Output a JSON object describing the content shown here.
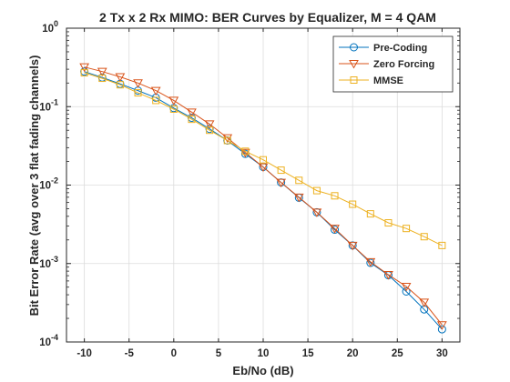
{
  "chart_data": {
    "type": "line",
    "title": "2 Tx x 2 Rx MIMO: BER Curves by Equalizer, M = 4 QAM",
    "xlabel": "Eb/No (dB)",
    "ylabel": "Bit Error Rate (avg over 3 flat fading channels)",
    "xlim": [
      -12,
      32
    ],
    "ylim": [
      0.0001,
      1
    ],
    "yscale": "log",
    "grid": true,
    "legend_position": "top-right",
    "x_ticks": [
      -10,
      -5,
      0,
      5,
      10,
      15,
      20,
      25,
      30
    ],
    "x_tick_labels": [
      "-10",
      "-5",
      "0",
      "5",
      "10",
      "15",
      "20",
      "25",
      "30"
    ],
    "y_ticks": [
      0.0001,
      0.001,
      0.01,
      0.1,
      1
    ],
    "y_tick_labels": [
      {
        "base": "10",
        "exp": "-4"
      },
      {
        "base": "10",
        "exp": "-3"
      },
      {
        "base": "10",
        "exp": "-2"
      },
      {
        "base": "10",
        "exp": "-1"
      },
      {
        "base": "10",
        "exp": "0"
      }
    ],
    "x": [
      -10,
      -8,
      -6,
      -4,
      -2,
      0,
      2,
      4,
      6,
      8,
      10,
      12,
      14,
      16,
      18,
      20,
      22,
      24,
      26,
      28,
      30
    ],
    "series": [
      {
        "name": "Pre-Coding",
        "color": "#0072BD",
        "marker": "circle",
        "values": [
          0.28,
          0.235,
          0.195,
          0.16,
          0.13,
          0.096,
          0.072,
          0.052,
          0.037,
          0.025,
          0.017,
          0.0108,
          0.0069,
          0.0045,
          0.0027,
          0.0017,
          0.00102,
          0.00071,
          0.00044,
          0.00026,
          0.000145
        ]
      },
      {
        "name": "Zero Forcing",
        "color": "#D95319",
        "marker": "triangle-down",
        "values": [
          0.32,
          0.28,
          0.24,
          0.2,
          0.16,
          0.12,
          0.085,
          0.06,
          0.04,
          0.026,
          0.017,
          0.0108,
          0.007,
          0.0045,
          0.0028,
          0.0017,
          0.00105,
          0.00072,
          0.00051,
          0.00032,
          0.000165
        ]
      },
      {
        "name": "MMSE",
        "color": "#EDB120",
        "marker": "square",
        "values": [
          0.27,
          0.23,
          0.19,
          0.15,
          0.12,
          0.093,
          0.069,
          0.05,
          0.037,
          0.027,
          0.021,
          0.0155,
          0.0115,
          0.0085,
          0.0073,
          0.0057,
          0.0043,
          0.0033,
          0.0028,
          0.0022,
          0.0017
        ]
      }
    ]
  }
}
